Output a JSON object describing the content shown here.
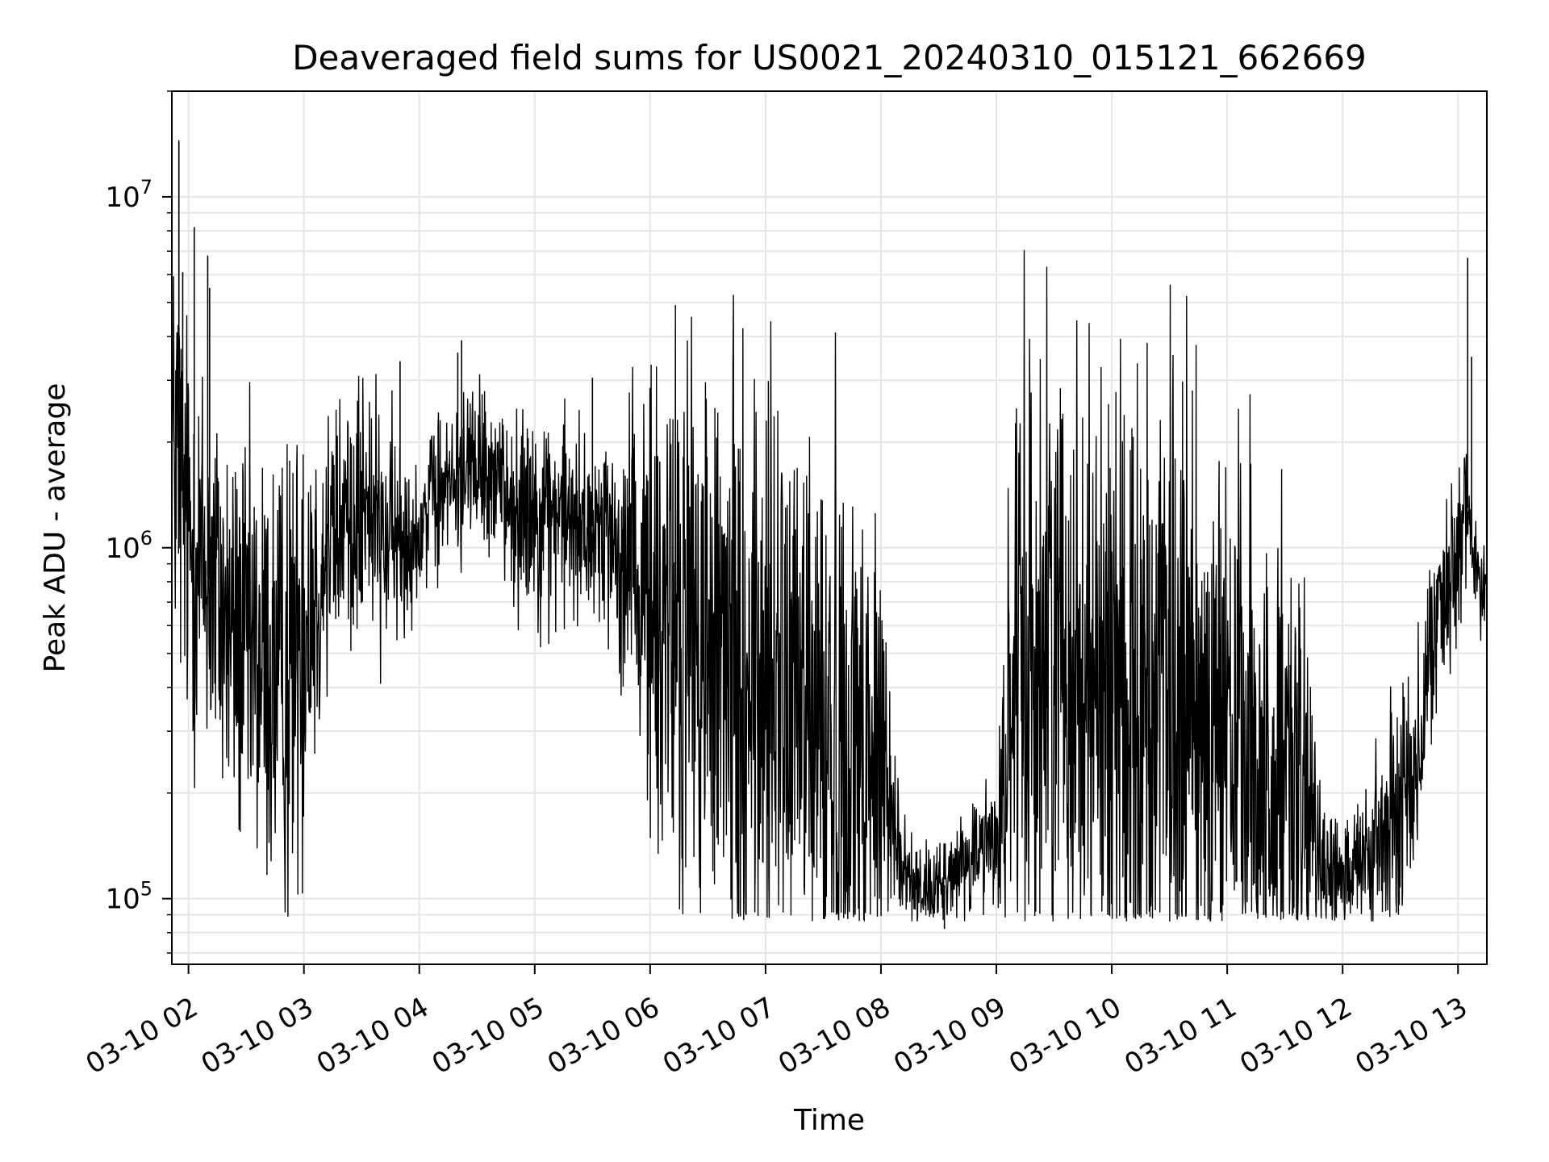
{
  "chart_data": {
    "type": "line",
    "title": "Deaveraged field sums for US0021_20240310_015121_662669",
    "xlabel": "Time",
    "ylabel": "Peak ADU - average",
    "y_scale": "log",
    "ylim": [
      65000,
      20000000
    ],
    "xlim": [
      "2024-03-10 01:51:21",
      "2024-03-10 13:15:00"
    ],
    "grid": true,
    "line_color": "#000000",
    "x_ticks": [
      {
        "label": "03-10 02",
        "value": "2024-03-10 02:00"
      },
      {
        "label": "03-10 03",
        "value": "2024-03-10 03:00"
      },
      {
        "label": "03-10 04",
        "value": "2024-03-10 04:00"
      },
      {
        "label": "03-10 05",
        "value": "2024-03-10 05:00"
      },
      {
        "label": "03-10 06",
        "value": "2024-03-10 06:00"
      },
      {
        "label": "03-10 07",
        "value": "2024-03-10 07:00"
      },
      {
        "label": "03-10 08",
        "value": "2024-03-10 08:00"
      },
      {
        "label": "03-10 09",
        "value": "2024-03-10 09:00"
      },
      {
        "label": "03-10 10",
        "value": "2024-03-10 10:00"
      },
      {
        "label": "03-10 11",
        "value": "2024-03-10 11:00"
      },
      {
        "label": "03-10 12",
        "value": "2024-03-10 12:00"
      },
      {
        "label": "03-10 13",
        "value": "2024-03-10 13:00"
      }
    ],
    "y_ticks": [
      {
        "base": "10",
        "exp": "5",
        "value": 100000
      },
      {
        "base": "10",
        "exp": "6",
        "value": 1000000
      },
      {
        "base": "10",
        "exp": "7",
        "value": 10000000
      }
    ],
    "series": [
      {
        "x": [
          "2024-03-10 01:51",
          "2024-03-10 01:54",
          "2024-03-10 01:57",
          "2024-03-10 02:00",
          "2024-03-10 02:06",
          "2024-03-10 02:12",
          "2024-03-10 02:20",
          "2024-03-10 02:30",
          "2024-03-10 02:40",
          "2024-03-10 02:50",
          "2024-03-10 03:00",
          "2024-03-10 03:10",
          "2024-03-10 03:20",
          "2024-03-10 03:30",
          "2024-03-10 03:40",
          "2024-03-10 03:50",
          "2024-03-10 04:00",
          "2024-03-10 04:10",
          "2024-03-10 04:20",
          "2024-03-10 04:30",
          "2024-03-10 04:40",
          "2024-03-10 04:50",
          "2024-03-10 05:00",
          "2024-03-10 05:10",
          "2024-03-10 05:20",
          "2024-03-10 05:30",
          "2024-03-10 05:40",
          "2024-03-10 05:50",
          "2024-03-10 06:00",
          "2024-03-10 06:10",
          "2024-03-10 06:20",
          "2024-03-10 06:30",
          "2024-03-10 06:40",
          "2024-03-10 06:50",
          "2024-03-10 07:00",
          "2024-03-10 07:10",
          "2024-03-10 07:20",
          "2024-03-10 07:30",
          "2024-03-10 07:40",
          "2024-03-10 07:50",
          "2024-03-10 08:00",
          "2024-03-10 08:10",
          "2024-03-10 08:20",
          "2024-03-10 08:30",
          "2024-03-10 08:40",
          "2024-03-10 08:50",
          "2024-03-10 09:00",
          "2024-03-10 09:10",
          "2024-03-10 09:20",
          "2024-03-10 09:30",
          "2024-03-10 09:40",
          "2024-03-10 09:50",
          "2024-03-10 10:00",
          "2024-03-10 10:10",
          "2024-03-10 10:20",
          "2024-03-10 10:30",
          "2024-03-10 10:40",
          "2024-03-10 10:50",
          "2024-03-10 11:00",
          "2024-03-10 11:10",
          "2024-03-10 11:20",
          "2024-03-10 11:30",
          "2024-03-10 11:40",
          "2024-03-10 11:50",
          "2024-03-10 12:00",
          "2024-03-10 12:10",
          "2024-03-10 12:20",
          "2024-03-10 12:30",
          "2024-03-10 12:40",
          "2024-03-10 12:50",
          "2024-03-10 13:00",
          "2024-03-10 13:05",
          "2024-03-10 13:10",
          "2024-03-10 13:15"
        ],
        "y": [
          1800000,
          2000000,
          1300000,
          1100000,
          900000,
          800000,
          600000,
          500000,
          450000,
          400000,
          650000,
          900000,
          1200000,
          1300000,
          1100000,
          1000000,
          1200000,
          1400000,
          1600000,
          1700000,
          1500000,
          1350000,
          1300000,
          1250000,
          1200000,
          1150000,
          1100000,
          900000,
          700000,
          600000,
          550000,
          500000,
          460000,
          420000,
          400000,
          380000,
          340000,
          300000,
          280000,
          260000,
          250000,
          120000,
          110000,
          105000,
          120000,
          140000,
          150000,
          400000,
          500000,
          550000,
          500000,
          450000,
          400000,
          380000,
          360000,
          340000,
          330000,
          320000,
          300000,
          260000,
          220000,
          200000,
          170000,
          130000,
          120000,
          120000,
          140000,
          180000,
          300000,
          700000,
          850000,
          1300000,
          850000,
          850000
        ],
        "noise_log10": [
          0.25,
          0.35,
          0.3,
          0.3,
          0.3,
          0.3,
          0.28,
          0.3,
          0.32,
          0.32,
          0.3,
          0.25,
          0.2,
          0.2,
          0.18,
          0.15,
          0.12,
          0.12,
          0.12,
          0.12,
          0.12,
          0.14,
          0.15,
          0.15,
          0.15,
          0.15,
          0.16,
          0.25,
          0.35,
          0.4,
          0.4,
          0.4,
          0.42,
          0.42,
          0.42,
          0.42,
          0.42,
          0.42,
          0.42,
          0.4,
          0.35,
          0.08,
          0.06,
          0.06,
          0.08,
          0.08,
          0.1,
          0.45,
          0.45,
          0.45,
          0.45,
          0.45,
          0.45,
          0.45,
          0.45,
          0.45,
          0.45,
          0.42,
          0.42,
          0.4,
          0.35,
          0.32,
          0.3,
          0.12,
          0.08,
          0.1,
          0.15,
          0.18,
          0.15,
          0.12,
          0.12,
          0.12,
          0.08,
          0.08
        ],
        "spikes": [
          {
            "x": "2024-03-10 01:55",
            "y": 14500000
          },
          {
            "x": "2024-03-10 01:57",
            "y": 6100000
          },
          {
            "x": "2024-03-10 02:03",
            "y": 8200000
          },
          {
            "x": "2024-03-10 02:10",
            "y": 6800000
          },
          {
            "x": "2024-03-10 02:11",
            "y": 5500000
          },
          {
            "x": "2024-03-10 04:20",
            "y": 3600000
          },
          {
            "x": "2024-03-10 04:22",
            "y": 3900000
          },
          {
            "x": "2024-03-10 03:50",
            "y": 3400000
          },
          {
            "x": "2024-03-10 05:30",
            "y": 3050000
          },
          {
            "x": "2024-03-10 13:05",
            "y": 6700000
          },
          {
            "x": "2024-03-10 13:07",
            "y": 3500000
          },
          {
            "x": "2024-03-10 08:33",
            "y": 82000
          },
          {
            "x": "2024-03-10 11:42",
            "y": 87000
          }
        ]
      }
    ]
  }
}
